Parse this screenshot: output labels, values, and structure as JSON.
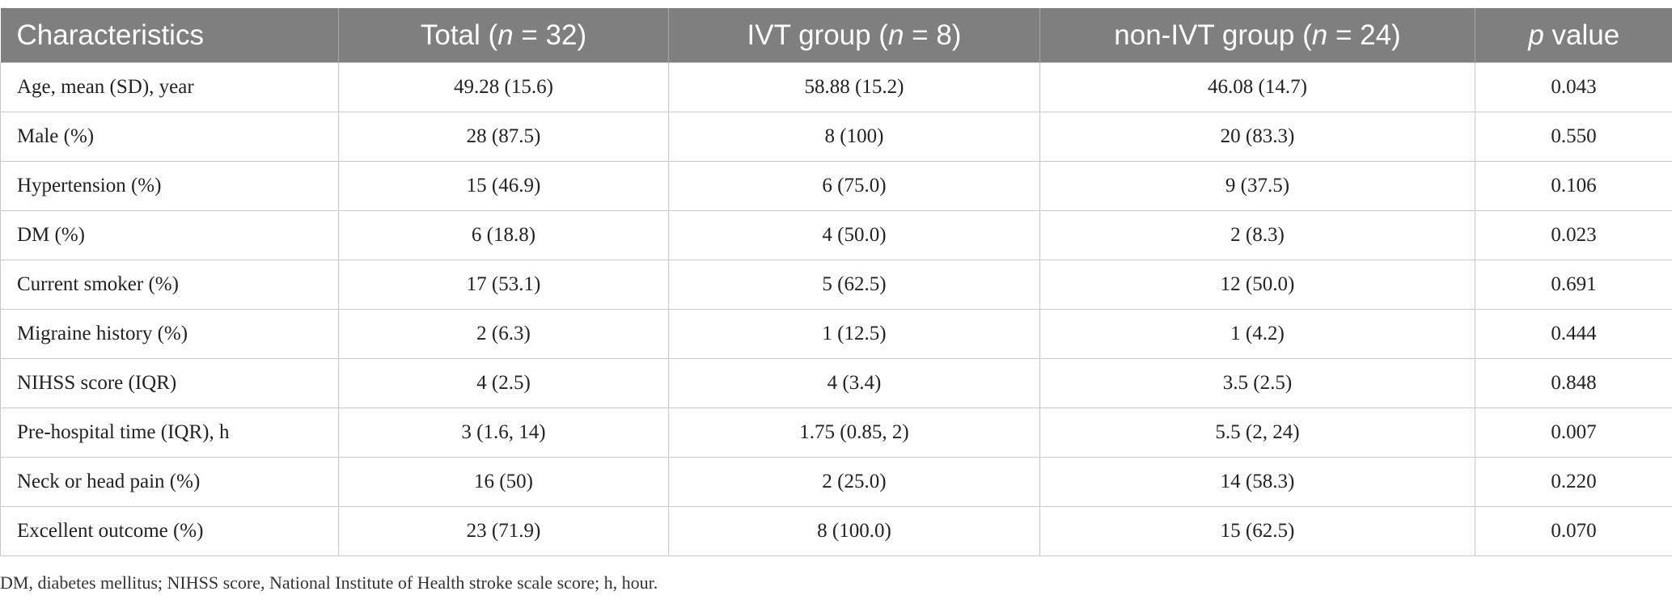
{
  "table": {
    "header": [
      [
        {
          "text": "Characteristics"
        }
      ],
      [
        {
          "text": "Total ("
        },
        {
          "text": "n",
          "italic": true
        },
        {
          "text": " = 32)"
        }
      ],
      [
        {
          "text": "IVT group ("
        },
        {
          "text": "n",
          "italic": true
        },
        {
          "text": " = 8)"
        }
      ],
      [
        {
          "text": "non-IVT group ("
        },
        {
          "text": "n",
          "italic": true
        },
        {
          "text": " = 24)"
        }
      ],
      [
        {
          "text": "p",
          "italic": true
        },
        {
          "text": " value"
        }
      ]
    ],
    "rows": [
      [
        "Age, mean (SD), year",
        "49.28 (15.6)",
        "58.88 (15.2)",
        "46.08 (14.7)",
        "0.043"
      ],
      [
        "Male (%)",
        "28 (87.5)",
        "8 (100)",
        "20 (83.3)",
        "0.550"
      ],
      [
        "Hypertension (%)",
        "15 (46.9)",
        "6 (75.0)",
        "9 (37.5)",
        "0.106"
      ],
      [
        "DM (%)",
        "6 (18.8)",
        "4 (50.0)",
        "2 (8.3)",
        "0.023"
      ],
      [
        "Current smoker (%)",
        "17 (53.1)",
        "5 (62.5)",
        "12 (50.0)",
        "0.691"
      ],
      [
        "Migraine history (%)",
        "2 (6.3)",
        "1 (12.5)",
        "1 (4.2)",
        "0.444"
      ],
      [
        "NIHSS score (IQR)",
        "4 (2.5)",
        "4 (3.4)",
        "3.5 (2.5)",
        "0.848"
      ],
      [
        "Pre-hospital time (IQR), h",
        "3 (1.6, 14)",
        "1.75 (0.85, 2)",
        "5.5 (2, 24)",
        "0.007"
      ],
      [
        "Neck or head pain (%)",
        "16 (50)",
        "2 (25.0)",
        "14 (58.3)",
        "0.220"
      ],
      [
        "Excellent outcome (%)",
        "23 (71.9)",
        "8 (100.0)",
        "15 (62.5)",
        "0.070"
      ]
    ],
    "footnote": "DM, diabetes mellitus; NIHSS score, National Institute of Health stroke scale score; h, hour."
  }
}
